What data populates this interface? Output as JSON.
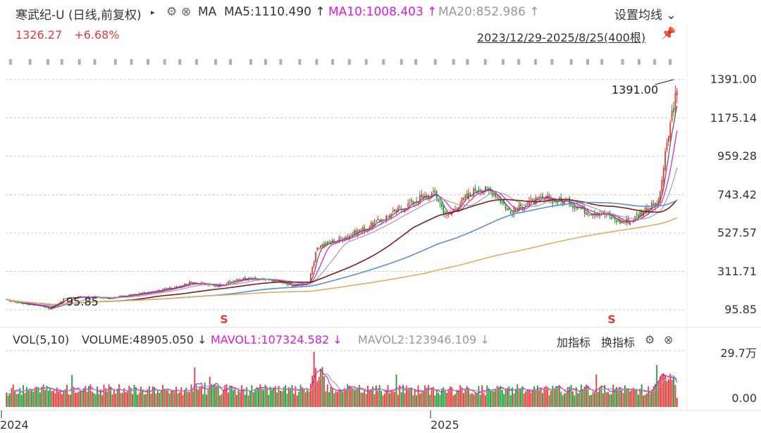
{
  "header": {
    "title": "寒武纪-U (日线,前复权)",
    "caret": "▸",
    "ma_label": "MA",
    "ma5": "MA5:1110.490 ↑",
    "ma10": "MA10:1008.403 ↑",
    "ma20": "MA20:852.986 ↑",
    "settings": "设置均线 ⌄"
  },
  "quote": {
    "price": "1326.27",
    "change": "+6.68%"
  },
  "range": "2023/12/29-2025/8/25(400根)",
  "annotations": {
    "high": "1391.00",
    "low": "95.85",
    "marker": "S"
  },
  "volume_header": {
    "name": "VOL(5,10)",
    "volume": "VOLUME:48905.050 ↓",
    "mavol1": "MAVOL1:107324.582 ↓",
    "mavol2": "MAVOL2:123946.109 ↓",
    "add_indicator": "加指标",
    "switch_indicator": "换指标"
  },
  "colors": {
    "up": "#e53935",
    "down": "#1a9e3a",
    "ma5": "#555555",
    "ma10": "#d81bd8",
    "ma20": "#a0a0a0",
    "ma60": "#7b1f1f",
    "ma120": "#5b8fd0",
    "ma250": "#d6b064"
  },
  "chart_data": [
    {
      "type": "candlestick",
      "y_ticks": [
        "1391.00",
        "1175.14",
        "959.28",
        "743.42",
        "527.57",
        "311.71",
        "95.85"
      ],
      "ylim": [
        95.85,
        1391.0
      ],
      "x_ticks": [
        "2024",
        "2025"
      ],
      "bar_count": 400,
      "close_keypoints": [
        {
          "i": 0,
          "v": 150
        },
        {
          "i": 10,
          "v": 130
        },
        {
          "i": 20,
          "v": 120
        },
        {
          "i": 26,
          "v": 100
        },
        {
          "i": 35,
          "v": 160
        },
        {
          "i": 45,
          "v": 170
        },
        {
          "i": 60,
          "v": 160
        },
        {
          "i": 75,
          "v": 180
        },
        {
          "i": 90,
          "v": 200
        },
        {
          "i": 110,
          "v": 250
        },
        {
          "i": 125,
          "v": 230
        },
        {
          "i": 140,
          "v": 270
        },
        {
          "i": 160,
          "v": 260
        },
        {
          "i": 170,
          "v": 230
        },
        {
          "i": 180,
          "v": 250
        },
        {
          "i": 185,
          "v": 450
        },
        {
          "i": 200,
          "v": 500
        },
        {
          "i": 215,
          "v": 560
        },
        {
          "i": 230,
          "v": 640
        },
        {
          "i": 245,
          "v": 720
        },
        {
          "i": 255,
          "v": 750
        },
        {
          "i": 262,
          "v": 620
        },
        {
          "i": 270,
          "v": 700
        },
        {
          "i": 280,
          "v": 780
        },
        {
          "i": 290,
          "v": 760
        },
        {
          "i": 300,
          "v": 640
        },
        {
          "i": 310,
          "v": 700
        },
        {
          "i": 320,
          "v": 720
        },
        {
          "i": 335,
          "v": 700
        },
        {
          "i": 345,
          "v": 650
        },
        {
          "i": 355,
          "v": 640
        },
        {
          "i": 365,
          "v": 590
        },
        {
          "i": 372,
          "v": 600
        },
        {
          "i": 380,
          "v": 660
        },
        {
          "i": 388,
          "v": 700
        },
        {
          "i": 392,
          "v": 960
        },
        {
          "i": 396,
          "v": 1200
        },
        {
          "i": 399,
          "v": 1326.27
        }
      ],
      "moving_averages": [
        "MA5",
        "MA10",
        "MA20",
        "MA60",
        "MA120",
        "MA250"
      ],
      "last": {
        "MA5": 1110.49,
        "MA10": 1008.403,
        "MA20": 852.986
      }
    },
    {
      "type": "bar",
      "name": "VOL(5,10)",
      "y_ticks": [
        "29.7万",
        "0.00"
      ],
      "ylim": [
        0,
        297000
      ],
      "last": {
        "VOLUME": 48905.05,
        "MAVOL1": 107324.582,
        "MAVOL2": 123946.109
      }
    }
  ]
}
